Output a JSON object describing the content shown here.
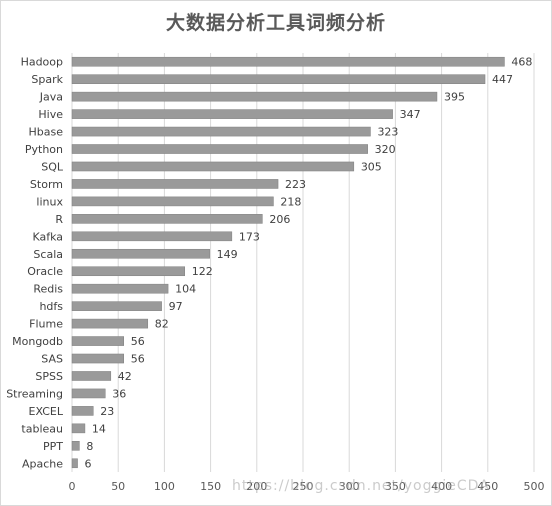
{
  "chart_data": {
    "type": "bar",
    "orientation": "horizontal",
    "title": "大数据分析工具词频分析",
    "categories": [
      "Hadoop",
      "Spark",
      "Java",
      "Hive",
      "Hbase",
      "Python",
      "SQL",
      "Storm",
      "linux",
      "R",
      "Kafka",
      "Scala",
      "Oracle",
      "Redis",
      "hdfs",
      "Flume",
      "Mongodb",
      "SAS",
      "SPSS",
      "Streaming",
      "EXCEL",
      "tableau",
      "PPT",
      "Apache"
    ],
    "values": [
      468,
      447,
      395,
      347,
      323,
      320,
      305,
      223,
      218,
      206,
      173,
      149,
      122,
      104,
      97,
      82,
      56,
      56,
      42,
      36,
      23,
      14,
      8,
      6
    ],
    "xlim": [
      0,
      500
    ],
    "xticks": [
      0,
      50,
      100,
      150,
      200,
      250,
      300,
      350,
      400,
      450,
      500
    ],
    "grid": true,
    "legend": "none",
    "colors": {
      "bar": "#9a9a9a",
      "bar_edge": "#7f7f7f",
      "grid": "#d9d9d9"
    }
  },
  "watermark": "https://blog.csdn.net/yoggieCDA"
}
